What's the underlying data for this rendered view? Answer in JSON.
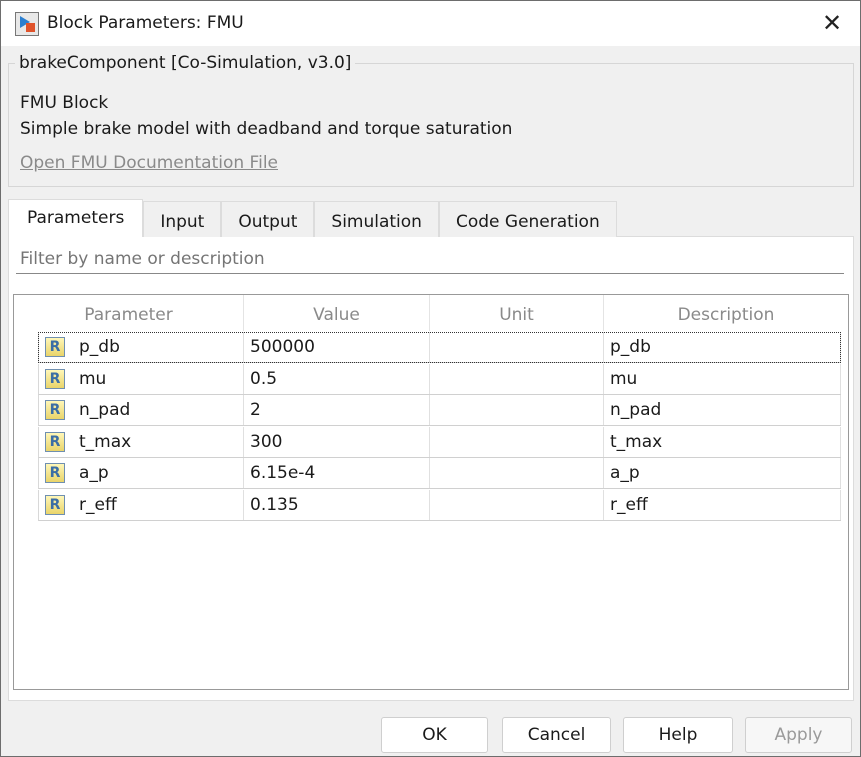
{
  "window": {
    "title": "Block Parameters: FMU"
  },
  "group": {
    "legend": "brakeComponent [Co-Simulation, v3.0]",
    "block_type": "FMU Block",
    "description": "Simple brake model with deadband and torque saturation",
    "doc_link": "Open FMU Documentation File"
  },
  "tabs": [
    {
      "label": "Parameters",
      "active": true
    },
    {
      "label": "Input"
    },
    {
      "label": "Output"
    },
    {
      "label": "Simulation"
    },
    {
      "label": "Code Generation"
    }
  ],
  "filter": {
    "placeholder": "Filter by name or description",
    "value": ""
  },
  "table": {
    "columns": [
      "Parameter",
      "Value",
      "Unit",
      "Description"
    ],
    "rows": [
      {
        "icon": "R",
        "name": "p_db",
        "value": "500000",
        "unit": "",
        "description": "p_db"
      },
      {
        "icon": "R",
        "name": "mu",
        "value": "0.5",
        "unit": "",
        "description": "mu"
      },
      {
        "icon": "R",
        "name": "n_pad",
        "value": "2",
        "unit": "",
        "description": "n_pad"
      },
      {
        "icon": "R",
        "name": "t_max",
        "value": "300",
        "unit": "",
        "description": "t_max"
      },
      {
        "icon": "R",
        "name": "a_p",
        "value": "6.15e-4",
        "unit": "",
        "description": "a_p"
      },
      {
        "icon": "R",
        "name": "r_eff",
        "value": "0.135",
        "unit": "",
        "description": "r_eff"
      }
    ]
  },
  "buttons": {
    "ok": "OK",
    "cancel": "Cancel",
    "help": "Help",
    "apply": "Apply"
  }
}
